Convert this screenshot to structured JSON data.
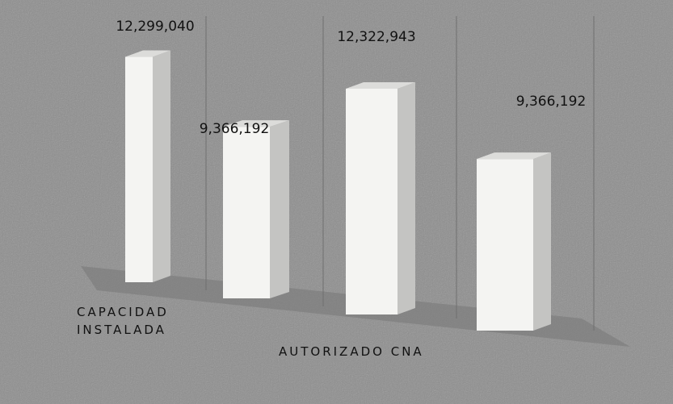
{
  "chart_data": {
    "type": "bar3d",
    "categories": [
      "CAPACIDAD INSTALADA",
      "AUTORIZADO CNA"
    ],
    "series": [
      {
        "color": "#f4f4f2",
        "values": [
          12299040,
          12322943
        ],
        "value_labels": [
          "12,299,040",
          "12,322,943"
        ]
      },
      {
        "color": "#f4f4f2",
        "values": [
          9366192,
          9366192
        ],
        "value_labels": [
          "9,366,192",
          "9,366,192"
        ]
      }
    ]
  }
}
